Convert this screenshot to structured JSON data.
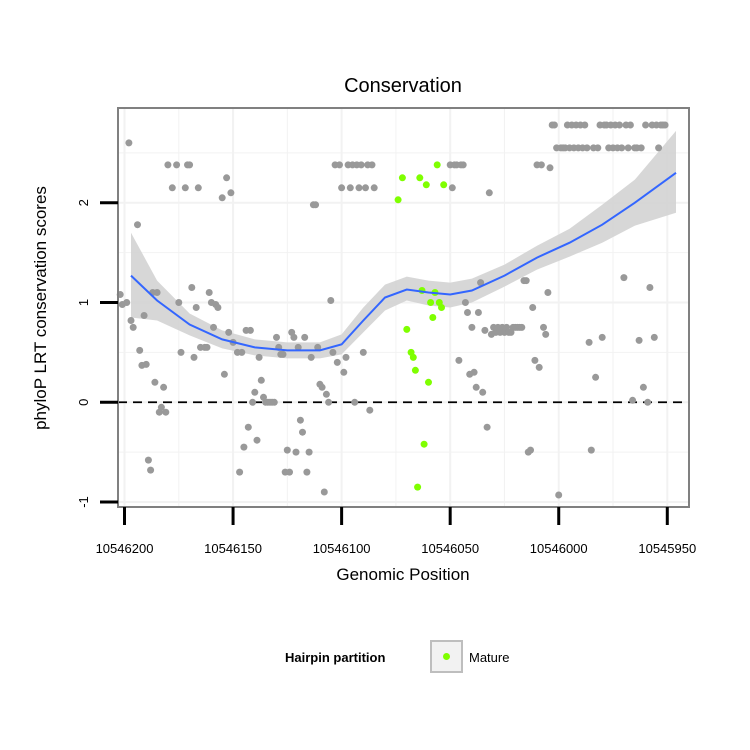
{
  "chart_data": {
    "type": "scatter",
    "title": "Conservation",
    "xlabel": "Genomic Position",
    "ylabel": "phyloP LRT conservation scores",
    "xlim": [
      10546203,
      10545940
    ],
    "ylim": [
      -1.05,
      2.95
    ],
    "x_reversed": true,
    "x_ticks": [
      10546200,
      10546150,
      10546100,
      10546050,
      10546000,
      10545950
    ],
    "x_tick_labels": [
      "10546200",
      "10546150",
      "10546100",
      "10546050",
      "10546000",
      "10545950"
    ],
    "y_ticks": [
      -1,
      0,
      1,
      2
    ],
    "y_tick_labels": [
      "-1",
      "0",
      "1",
      "2"
    ],
    "reference_line": {
      "y": 0,
      "style": "dashed"
    },
    "grid": true,
    "legend": {
      "title": "Hairpin partition",
      "entries": [
        "Mature"
      ],
      "position": "bottom"
    },
    "colors": {
      "other": "#999999",
      "mature": "#7FFF00",
      "smooth_line": "#3366FF",
      "ribbon": "#D3D3D3",
      "panel_border": "#808080",
      "grid": "#F2F2F2"
    },
    "series": [
      {
        "name": "",
        "color": "#999999",
        "points": [
          [
            10546202,
            1.08
          ],
          [
            10546201,
            0.98
          ],
          [
            10546199,
            1.0
          ],
          [
            10546198,
            2.6
          ],
          [
            10546197,
            0.82
          ],
          [
            10546196,
            0.75
          ],
          [
            10546194,
            1.78
          ],
          [
            10546193,
            0.52
          ],
          [
            10546192,
            0.37
          ],
          [
            10546191,
            0.87
          ],
          [
            10546190,
            0.38
          ],
          [
            10546189,
            -0.58
          ],
          [
            10546188,
            -0.68
          ],
          [
            10546187,
            1.1
          ],
          [
            10546186,
            0.2
          ],
          [
            10546185,
            1.1
          ],
          [
            10546184,
            -0.1
          ],
          [
            10546183,
            -0.05
          ],
          [
            10546182,
            0.15
          ],
          [
            10546181,
            -0.1
          ],
          [
            10546180,
            2.38
          ],
          [
            10546178,
            2.15
          ],
          [
            10546176,
            2.38
          ],
          [
            10546175,
            1.0
          ],
          [
            10546174,
            0.5
          ],
          [
            10546172,
            2.15
          ],
          [
            10546171,
            2.38
          ],
          [
            10546170,
            2.38
          ],
          [
            10546169,
            1.15
          ],
          [
            10546168,
            0.45
          ],
          [
            10546167,
            0.95
          ],
          [
            10546166,
            2.15
          ],
          [
            10546165,
            0.55
          ],
          [
            10546163,
            0.55
          ],
          [
            10546162,
            0.55
          ],
          [
            10546161,
            1.1
          ],
          [
            10546160,
            1.0
          ],
          [
            10546159,
            0.75
          ],
          [
            10546158,
            0.98
          ],
          [
            10546157,
            0.95
          ],
          [
            10546155,
            2.05
          ],
          [
            10546154,
            0.28
          ],
          [
            10546153,
            2.25
          ],
          [
            10546152,
            0.7
          ],
          [
            10546151,
            2.1
          ],
          [
            10546150,
            0.6
          ],
          [
            10546148,
            0.5
          ],
          [
            10546147,
            -0.7
          ],
          [
            10546146,
            0.5
          ],
          [
            10546145,
            -0.45
          ],
          [
            10546144,
            0.72
          ],
          [
            10546143,
            -0.25
          ],
          [
            10546142,
            0.72
          ],
          [
            10546141,
            0.0
          ],
          [
            10546140,
            0.1
          ],
          [
            10546139,
            -0.38
          ],
          [
            10546138,
            0.45
          ],
          [
            10546137,
            0.22
          ],
          [
            10546136,
            0.05
          ],
          [
            10546135,
            0.0
          ],
          [
            10546134,
            0.0
          ],
          [
            10546133,
            0.0
          ],
          [
            10546132,
            0.0
          ],
          [
            10546131,
            0.0
          ],
          [
            10546130,
            0.65
          ],
          [
            10546129,
            0.55
          ],
          [
            10546128,
            0.48
          ],
          [
            10546127,
            0.48
          ],
          [
            10546126,
            -0.7
          ],
          [
            10546125,
            -0.48
          ],
          [
            10546124,
            -0.7
          ],
          [
            10546123,
            0.7
          ],
          [
            10546122,
            0.65
          ],
          [
            10546121,
            -0.5
          ],
          [
            10546120,
            0.55
          ],
          [
            10546119,
            -0.18
          ],
          [
            10546118,
            -0.3
          ],
          [
            10546117,
            0.65
          ],
          [
            10546116,
            -0.7
          ],
          [
            10546115,
            -0.5
          ],
          [
            10546114,
            0.45
          ],
          [
            10546113,
            1.98
          ],
          [
            10546112,
            1.98
          ],
          [
            10546111,
            0.55
          ],
          [
            10546110,
            0.18
          ],
          [
            10546109,
            0.15
          ],
          [
            10546108,
            -0.9
          ],
          [
            10546107,
            0.08
          ],
          [
            10546106,
            0.0
          ],
          [
            10546105,
            1.02
          ],
          [
            10546104,
            0.5
          ],
          [
            10546103,
            2.38
          ],
          [
            10546102,
            0.4
          ],
          [
            10546101,
            2.38
          ],
          [
            10546100,
            2.15
          ],
          [
            10546099,
            0.3
          ],
          [
            10546098,
            0.45
          ],
          [
            10546097,
            2.38
          ],
          [
            10546096,
            2.15
          ],
          [
            10546095,
            2.38
          ],
          [
            10546094,
            0.0
          ],
          [
            10546093,
            2.38
          ],
          [
            10546092,
            2.15
          ],
          [
            10546091,
            2.38
          ],
          [
            10546090,
            0.5
          ],
          [
            10546089,
            2.15
          ],
          [
            10546088,
            2.38
          ],
          [
            10546087,
            -0.08
          ],
          [
            10546086,
            2.38
          ],
          [
            10546085,
            2.15
          ],
          [
            10546050,
            2.38
          ],
          [
            10546049,
            2.15
          ],
          [
            10546048,
            2.38
          ],
          [
            10546047,
            2.38
          ],
          [
            10546046,
            0.42
          ],
          [
            10546045,
            2.38
          ],
          [
            10546044,
            2.38
          ],
          [
            10546043,
            1.0
          ],
          [
            10546042,
            0.9
          ],
          [
            10546041,
            0.28
          ],
          [
            10546040,
            0.75
          ],
          [
            10546039,
            0.3
          ],
          [
            10546038,
            0.15
          ],
          [
            10546037,
            0.9
          ],
          [
            10546036,
            1.2
          ],
          [
            10546035,
            0.1
          ],
          [
            10546034,
            0.72
          ],
          [
            10546033,
            -0.25
          ],
          [
            10546032,
            2.1
          ],
          [
            10546031,
            0.68
          ],
          [
            10546030,
            0.75
          ],
          [
            10546029,
            0.7
          ],
          [
            10546028,
            0.75
          ],
          [
            10546027,
            0.7
          ],
          [
            10546026,
            0.75
          ],
          [
            10546025,
            0.7
          ],
          [
            10546024,
            0.75
          ],
          [
            10546023,
            0.7
          ],
          [
            10546022,
            0.7
          ],
          [
            10546021,
            0.75
          ],
          [
            10546020,
            0.75
          ],
          [
            10546019,
            0.75
          ],
          [
            10546018,
            0.75
          ],
          [
            10546017,
            0.75
          ],
          [
            10546016,
            1.22
          ],
          [
            10546015,
            1.22
          ],
          [
            10546014,
            -0.5
          ],
          [
            10546013,
            -0.48
          ],
          [
            10546012,
            0.95
          ],
          [
            10546011,
            0.42
          ],
          [
            10546010,
            2.38
          ],
          [
            10546009,
            0.35
          ],
          [
            10546008,
            2.38
          ],
          [
            10546007,
            0.75
          ],
          [
            10546006,
            0.68
          ],
          [
            10546005,
            1.1
          ],
          [
            10546004,
            2.35
          ],
          [
            10546003,
            2.78
          ],
          [
            10546002,
            2.78
          ],
          [
            10546001,
            2.55
          ],
          [
            10546000,
            -0.93
          ],
          [
            10545999,
            2.55
          ],
          [
            10545998,
            2.55
          ],
          [
            10545997,
            2.55
          ],
          [
            10545996,
            2.78
          ],
          [
            10545995,
            2.55
          ],
          [
            10545994,
            2.78
          ],
          [
            10545993,
            2.55
          ],
          [
            10545992,
            2.78
          ],
          [
            10545991,
            2.55
          ],
          [
            10545990,
            2.78
          ],
          [
            10545989,
            2.55
          ],
          [
            10545988,
            2.78
          ],
          [
            10545987,
            2.55
          ],
          [
            10545986,
            0.6
          ],
          [
            10545985,
            -0.48
          ],
          [
            10545984,
            2.55
          ],
          [
            10545983,
            0.25
          ],
          [
            10545982,
            2.55
          ],
          [
            10545981,
            2.78
          ],
          [
            10545980,
            0.65
          ],
          [
            10545979,
            2.78
          ],
          [
            10545978,
            2.78
          ],
          [
            10545977,
            2.55
          ],
          [
            10545976,
            2.78
          ],
          [
            10545975,
            2.55
          ],
          [
            10545974,
            2.78
          ],
          [
            10545973,
            2.55
          ],
          [
            10545972,
            2.78
          ],
          [
            10545971,
            2.55
          ],
          [
            10545970,
            1.25
          ],
          [
            10545969,
            2.78
          ],
          [
            10545968,
            2.55
          ],
          [
            10545967,
            2.78
          ],
          [
            10545966,
            0.02
          ],
          [
            10545965,
            2.55
          ],
          [
            10545964,
            2.55
          ],
          [
            10545963,
            0.62
          ],
          [
            10545962,
            2.55
          ],
          [
            10545961,
            0.15
          ],
          [
            10545960,
            2.78
          ],
          [
            10545959,
            0.0
          ],
          [
            10545958,
            1.15
          ],
          [
            10545957,
            2.78
          ],
          [
            10545956,
            0.65
          ],
          [
            10545955,
            2.78
          ],
          [
            10545954,
            2.55
          ],
          [
            10545953,
            2.78
          ],
          [
            10545952,
            2.78
          ],
          [
            10545951,
            2.78
          ]
        ]
      },
      {
        "name": "Mature",
        "color": "#7FFF00",
        "points": [
          [
            10546074,
            2.03
          ],
          [
            10546072,
            2.25
          ],
          [
            10546070,
            0.73
          ],
          [
            10546068,
            0.5
          ],
          [
            10546067,
            0.45
          ],
          [
            10546066,
            0.32
          ],
          [
            10546065,
            -0.85
          ],
          [
            10546064,
            2.25
          ],
          [
            10546063,
            1.12
          ],
          [
            10546062,
            -0.42
          ],
          [
            10546061,
            2.18
          ],
          [
            10546060,
            0.2
          ],
          [
            10546059,
            1.0
          ],
          [
            10546058,
            0.85
          ],
          [
            10546057,
            1.1
          ],
          [
            10546056,
            2.38
          ],
          [
            10546055,
            1.0
          ],
          [
            10546054,
            0.95
          ],
          [
            10546053,
            2.18
          ]
        ]
      }
    ],
    "smooth": {
      "x": [
        10546197,
        10546185,
        10546170,
        10546155,
        10546140,
        10546125,
        10546110,
        10546100,
        10546090,
        10546080,
        10546070,
        10546060,
        10546050,
        10546040,
        10546025,
        10546010,
        10545995,
        10545980,
        10545965,
        10545946
      ],
      "y": [
        1.27,
        1.02,
        0.78,
        0.63,
        0.55,
        0.52,
        0.52,
        0.58,
        0.82,
        1.05,
        1.13,
        1.1,
        1.08,
        1.12,
        1.27,
        1.45,
        1.6,
        1.78,
        2.0,
        2.3
      ],
      "lower": [
        0.85,
        0.82,
        0.67,
        0.54,
        0.47,
        0.44,
        0.44,
        0.48,
        0.7,
        0.92,
        1.02,
        0.97,
        0.95,
        1.0,
        1.16,
        1.33,
        1.46,
        1.6,
        1.77,
        1.9
      ],
      "upper": [
        1.7,
        1.22,
        0.89,
        0.72,
        0.63,
        0.6,
        0.6,
        0.68,
        0.95,
        1.18,
        1.26,
        1.22,
        1.2,
        1.24,
        1.38,
        1.57,
        1.74,
        1.98,
        2.23,
        2.72
      ]
    }
  }
}
